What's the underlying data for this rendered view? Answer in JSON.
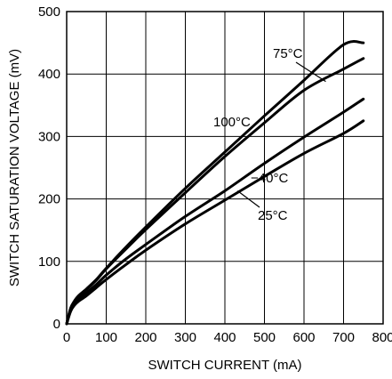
{
  "chart_data": {
    "type": "line",
    "title": "",
    "xlabel": "SWITCH CURRENT (mA)",
    "ylabel": "SWITCH SATURATION VOLTAGE (mV)",
    "xlim": [
      0,
      800
    ],
    "ylim": [
      0,
      500
    ],
    "xticks": [
      0,
      100,
      200,
      300,
      400,
      500,
      600,
      700,
      800
    ],
    "yticks": [
      0,
      100,
      200,
      300,
      400,
      500
    ],
    "grid": true,
    "series": [
      {
        "name": "100°C",
        "x": [
          0,
          10,
          20,
          30,
          50,
          75,
          100,
          150,
          200,
          300,
          400,
          500,
          600,
          700,
          750
        ],
        "y": [
          0,
          25,
          37,
          45,
          56,
          71,
          89,
          123,
          155,
          217,
          275,
          333,
          390,
          447,
          450
        ]
      },
      {
        "name": "75°C",
        "x": [
          0,
          10,
          20,
          30,
          50,
          75,
          100,
          150,
          200,
          300,
          400,
          500,
          600,
          700,
          750
        ],
        "y": [
          0,
          25,
          36,
          44,
          55,
          70,
          88,
          120,
          151,
          210,
          268,
          322,
          374,
          408,
          425
        ]
      },
      {
        "name": "25°C",
        "x": [
          0,
          10,
          20,
          30,
          50,
          75,
          100,
          150,
          200,
          300,
          400,
          500,
          600,
          700,
          750
        ],
        "y": [
          0,
          22,
          33,
          40,
          50,
          63,
          78,
          104,
          127,
          172,
          213,
          257,
          299,
          339,
          360
        ]
      },
      {
        "name": "−40°C",
        "x": [
          0,
          10,
          20,
          30,
          50,
          75,
          100,
          150,
          200,
          300,
          400,
          500,
          600,
          700,
          750
        ],
        "y": [
          0,
          20,
          30,
          36,
          45,
          58,
          71,
          95,
          118,
          160,
          198,
          236,
          273,
          305,
          325
        ]
      }
    ],
    "annotations": [
      {
        "text": "75°C",
        "tip_x": 655,
        "tip_y": 388
      },
      {
        "text": "100°C",
        "tip_x": 0,
        "tip_y": 0
      },
      {
        "text": "−40°C",
        "tip_x": 0,
        "tip_y": 0
      },
      {
        "text": "25°C",
        "tip_x": 432,
        "tip_y": 213
      }
    ]
  }
}
